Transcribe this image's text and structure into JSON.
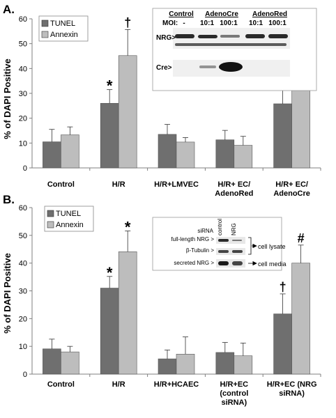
{
  "colors": {
    "tunel": "#6f6f6f",
    "annexin": "#bdbdbd",
    "axis": "#7f7f7f",
    "blot_bg": "#f2f2f2",
    "band": "#2a2a2a"
  },
  "chart_data": [
    {
      "type": "bar",
      "panel_label": "A.",
      "ylabel": "% of DAPI Positive",
      "ylim": [
        0,
        60
      ],
      "yticks": [
        0,
        10,
        20,
        30,
        40,
        50,
        60
      ],
      "categories": [
        "Control",
        "H/R",
        "H/R+LMVEC",
        "H/R+ EC/\nAdenoRed",
        "H/R+ EC/\nAdenoCre"
      ],
      "series": [
        {
          "name": "TUNEL",
          "values": [
            10.5,
            26,
            13.5,
            11.3,
            25.8
          ],
          "errors": [
            5,
            5.5,
            4,
            3.8,
            8.5
          ]
        },
        {
          "name": "Annexin",
          "values": [
            13.3,
            45.2,
            10.4,
            9.1,
            46.2
          ],
          "errors": [
            3.2,
            10.5,
            1.8,
            3.6,
            9.2
          ]
        }
      ],
      "annotations": [
        {
          "text": "*",
          "category": 1,
          "series": 0
        },
        {
          "text": "†",
          "category": 1,
          "series": 1
        },
        {
          "text": "*",
          "category": 4,
          "series": 0
        },
        {
          "text": "†",
          "category": 4,
          "series": 1
        }
      ],
      "legend": "top-left",
      "inset": {
        "groups": [
          "Control",
          "AdenoCre",
          "AdenoRed"
        ],
        "moi_label": "MOI:",
        "moi_values": [
          "-",
          "10:1",
          "100:1",
          "10:1",
          "100:1"
        ],
        "row_labels": [
          "NRG>",
          "Cre>"
        ]
      }
    },
    {
      "type": "bar",
      "panel_label": "B.",
      "ylabel": "% of DAPI Positive",
      "ylim": [
        0,
        60
      ],
      "yticks": [
        0,
        10,
        20,
        30,
        40,
        50,
        60
      ],
      "categories": [
        "Control",
        "H/R",
        "H/R+HCAEC",
        "H/R+EC\n(control\nsiRNA)",
        "H/R+EC (NRG\nsiRNA)"
      ],
      "series": [
        {
          "name": "TUNEL",
          "values": [
            9.1,
            31,
            5.5,
            7.8,
            21.7
          ],
          "errors": [
            3.5,
            4.2,
            3.2,
            3.6,
            7.2
          ]
        },
        {
          "name": "Annexin",
          "values": [
            8,
            44.1,
            7.2,
            6.6,
            40
          ],
          "errors": [
            2,
            7.5,
            6.2,
            4.6,
            6.5
          ]
        }
      ],
      "annotations": [
        {
          "text": "*",
          "category": 1,
          "series": 0
        },
        {
          "text": "*",
          "category": 1,
          "series": 1
        },
        {
          "text": "†",
          "category": 4,
          "series": 0
        },
        {
          "text": "#",
          "category": 4,
          "series": 1
        }
      ],
      "legend": "top-left",
      "inset": {
        "header": "siRNA",
        "columns": [
          "control",
          "NRG"
        ],
        "row_labels": [
          "full-length NRG >",
          "β-Tubulin >",
          "secreted NRG >"
        ],
        "side_labels": [
          "cell lysate",
          "cell media"
        ]
      }
    }
  ]
}
